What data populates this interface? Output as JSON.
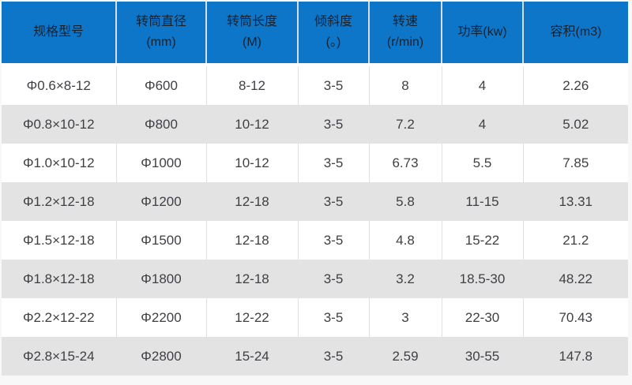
{
  "page_background": "#f8f8f8",
  "colors": {
    "header_bg": "#0e76c8",
    "header_text": "#15222e",
    "header_divider": "#d8dde1",
    "row_bg": "#ffffff",
    "row_alt_bg": "#e3e3e3",
    "body_text": "#3f3f46",
    "cell_divider": "#e0e0e0"
  },
  "chart_data": {
    "type": "table",
    "columns": [
      {
        "lines": [
          "规格型号"
        ]
      },
      {
        "lines": [
          "转筒直径",
          "(mm)"
        ]
      },
      {
        "lines": [
          "转筒长度",
          "(M)"
        ]
      },
      {
        "lines": [
          "倾斜度",
          "(。)"
        ]
      },
      {
        "lines": [
          "转速",
          "(r/min)"
        ]
      },
      {
        "lines": [
          "功率(kw)"
        ]
      },
      {
        "lines": [
          "容积(m3)"
        ]
      }
    ],
    "rows": [
      [
        "Φ0.6×8-12",
        "Φ600",
        "8-12",
        "3-5",
        "8",
        "4",
        "2.26"
      ],
      [
        "Φ0.8×10-12",
        "Φ800",
        "10-12",
        "3-5",
        "7.2",
        "4",
        "5.02"
      ],
      [
        "Φ1.0×10-12",
        "Φ1000",
        "10-12",
        "3-5",
        "6.73",
        "5.5",
        "7.85"
      ],
      [
        "Φ1.2×12-18",
        "Φ1200",
        "12-18",
        "3-5",
        "5.8",
        "11-15",
        "13.31"
      ],
      [
        "Φ1.5×12-18",
        "Φ1500",
        "12-18",
        "3-5",
        "4.8",
        "15-22",
        "21.2"
      ],
      [
        "Φ1.8×12-18",
        "Φ1800",
        "12-18",
        "3-5",
        "3.2",
        "18.5-30",
        "48.22"
      ],
      [
        "Φ2.2×12-22",
        "Φ2200",
        "12-22",
        "3-5",
        "3",
        "22-30",
        "70.43"
      ],
      [
        "Φ2.8×15-24",
        "Φ2800",
        "15-24",
        "3-5",
        "2.59",
        "30-55",
        "147.8"
      ]
    ]
  }
}
